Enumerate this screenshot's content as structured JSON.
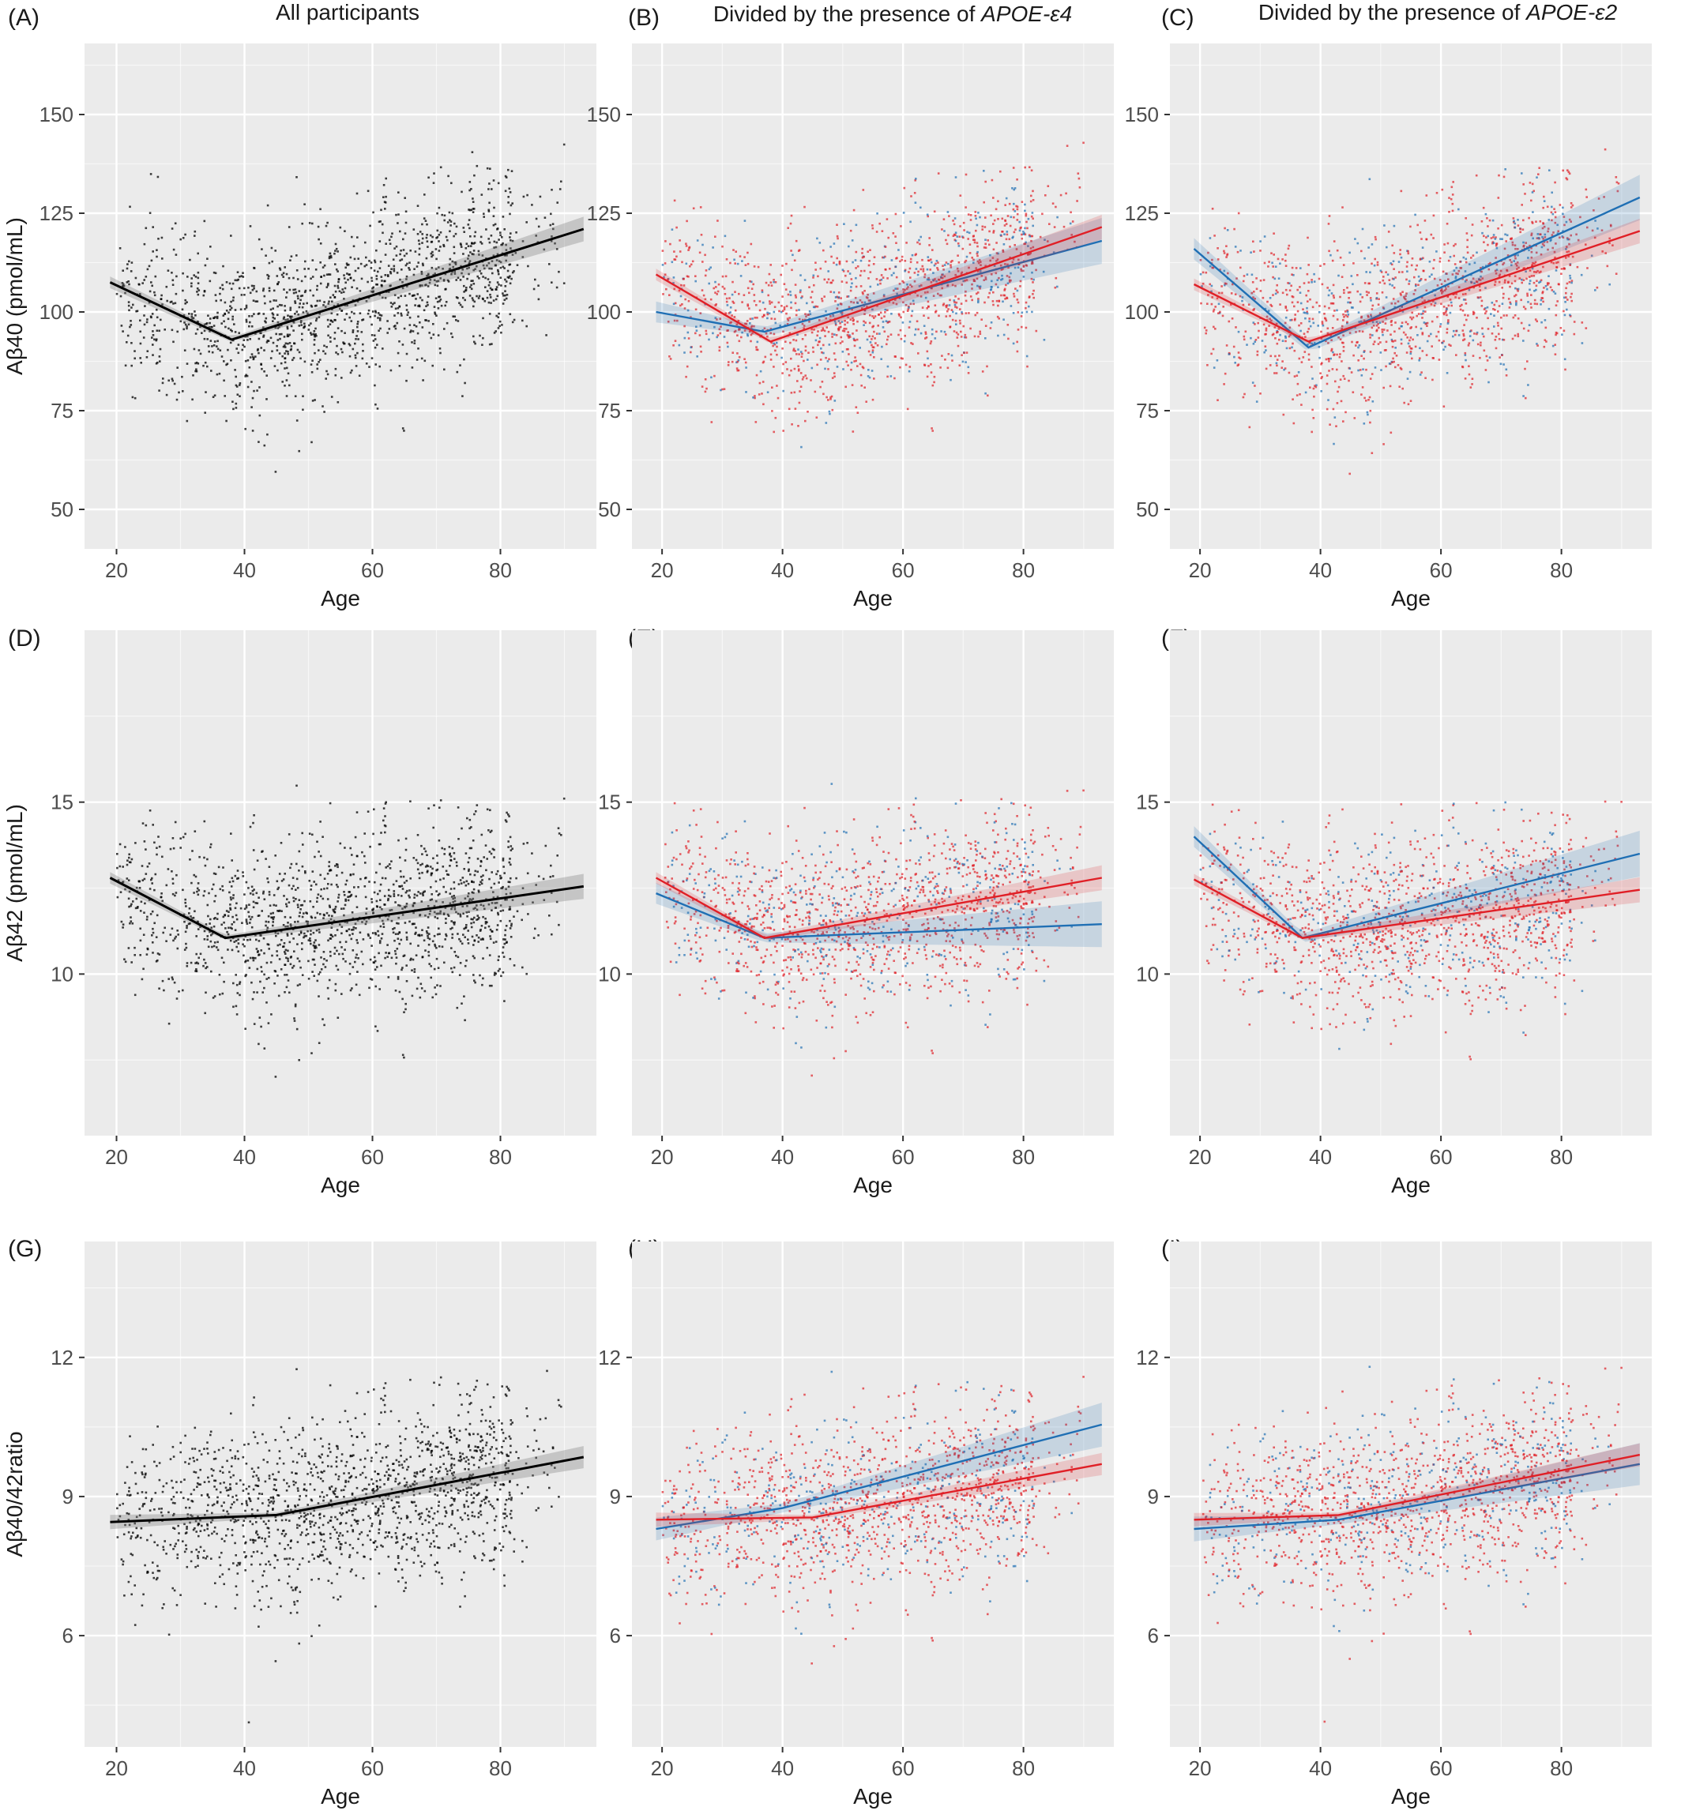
{
  "column_titles": [
    {
      "plain": "All participants",
      "italic": ""
    },
    {
      "plain": "Divided by the presence of ",
      "italic": "APOE-ε4"
    },
    {
      "plain": "Divided by the presence of ",
      "italic": "APOE-ε2"
    }
  ],
  "colors": {
    "all": "#000000",
    "carrier": "#1f6fb4",
    "noncarrier": "#e01f26",
    "panel_bg": "#ebebeb",
    "grid": "#ffffff"
  },
  "chart_data": [
    {
      "id": "A",
      "type": "scatter",
      "xlabel": "Age",
      "ylabel": "Aβ40 (pmol/mL)",
      "xlim": [
        15,
        95
      ],
      "ylim": [
        40,
        168
      ],
      "yticks": [
        50,
        75,
        100,
        125,
        150
      ],
      "xticks": [
        20,
        40,
        60,
        80
      ],
      "grid": true,
      "point_colors": [
        "#000000"
      ],
      "fit_lines": [
        {
          "color": "#000000",
          "x": [
            19,
            38,
            93
          ],
          "y": [
            107.5,
            93.0,
            121.0
          ]
        }
      ]
    },
    {
      "id": "B",
      "type": "scatter",
      "xlabel": "Age",
      "ylabel": "",
      "xlim": [
        15,
        95
      ],
      "ylim": [
        40,
        168
      ],
      "yticks": [
        50,
        75,
        100,
        125,
        150
      ],
      "xticks": [
        20,
        40,
        60,
        80
      ],
      "grid": true,
      "point_colors": [
        "#e01f26",
        "#e01f26",
        "#e01f26",
        "#1f6fb4"
      ],
      "fit_lines": [
        {
          "color": "#1f6fb4",
          "x": [
            19,
            37,
            93
          ],
          "y": [
            100.0,
            95.0,
            118.0
          ]
        },
        {
          "color": "#e01f26",
          "x": [
            19,
            38,
            93
          ],
          "y": [
            109.5,
            92.5,
            121.5
          ]
        }
      ]
    },
    {
      "id": "C",
      "type": "scatter",
      "xlabel": "Age",
      "ylabel": "",
      "xlim": [
        15,
        95
      ],
      "ylim": [
        40,
        168
      ],
      "yticks": [
        50,
        75,
        100,
        125,
        150
      ],
      "xticks": [
        20,
        40,
        60,
        80
      ],
      "grid": true,
      "point_colors": [
        "#e01f26",
        "#e01f26",
        "#e01f26",
        "#1f6fb4"
      ],
      "fit_lines": [
        {
          "color": "#1f6fb4",
          "x": [
            19,
            38,
            93
          ],
          "y": [
            116.0,
            91.0,
            129.0
          ]
        },
        {
          "color": "#e01f26",
          "x": [
            19,
            38,
            93
          ],
          "y": [
            107.0,
            92.5,
            120.5
          ]
        }
      ]
    },
    {
      "id": "D",
      "type": "scatter",
      "xlabel": "Age",
      "ylabel": "Aβ42 (pmol/mL)",
      "xlim": [
        15,
        95
      ],
      "ylim": [
        5.3,
        20.0
      ],
      "yticks": [
        10,
        15
      ],
      "xticks": [
        20,
        40,
        60,
        80
      ],
      "grid": true,
      "point_colors": [
        "#000000"
      ],
      "fit_lines": [
        {
          "color": "#000000",
          "x": [
            19,
            37,
            93
          ],
          "y": [
            12.8,
            11.05,
            12.55
          ]
        }
      ]
    },
    {
      "id": "E",
      "type": "scatter",
      "xlabel": "Age",
      "ylabel": "",
      "xlim": [
        15,
        95
      ],
      "ylim": [
        5.3,
        20.0
      ],
      "yticks": [
        10,
        15
      ],
      "xticks": [
        20,
        40,
        60,
        80
      ],
      "grid": true,
      "point_colors": [
        "#e01f26",
        "#e01f26",
        "#e01f26",
        "#1f6fb4"
      ],
      "fit_lines": [
        {
          "color": "#1f6fb4",
          "x": [
            19,
            37,
            93
          ],
          "y": [
            12.35,
            11.05,
            11.45
          ]
        },
        {
          "color": "#e01f26",
          "x": [
            19,
            37,
            93
          ],
          "y": [
            12.8,
            11.05,
            12.8
          ]
        }
      ]
    },
    {
      "id": "F",
      "type": "scatter",
      "xlabel": "Age",
      "ylabel": "",
      "xlim": [
        15,
        95
      ],
      "ylim": [
        5.3,
        20.0
      ],
      "yticks": [
        10,
        15
      ],
      "xticks": [
        20,
        40,
        60,
        80
      ],
      "grid": true,
      "point_colors": [
        "#e01f26",
        "#e01f26",
        "#e01f26",
        "#1f6fb4"
      ],
      "fit_lines": [
        {
          "color": "#1f6fb4",
          "x": [
            19,
            37,
            93
          ],
          "y": [
            14.0,
            11.05,
            13.5
          ]
        },
        {
          "color": "#e01f26",
          "x": [
            19,
            37,
            93
          ],
          "y": [
            12.75,
            11.05,
            12.45
          ]
        }
      ]
    },
    {
      "id": "G",
      "type": "scatter",
      "xlabel": "Age",
      "ylabel": "Aβ40/42ratio",
      "xlim": [
        15,
        95
      ],
      "ylim": [
        3.6,
        14.5
      ],
      "yticks": [
        6,
        9,
        12
      ],
      "xticks": [
        20,
        40,
        60,
        80
      ],
      "grid": true,
      "point_colors": [
        "#000000"
      ],
      "fit_lines": [
        {
          "color": "#000000",
          "x": [
            19,
            45,
            93
          ],
          "y": [
            8.45,
            8.6,
            9.85
          ]
        }
      ]
    },
    {
      "id": "H",
      "type": "scatter",
      "xlabel": "Age",
      "ylabel": "",
      "xlim": [
        15,
        95
      ],
      "ylim": [
        3.6,
        14.5
      ],
      "yticks": [
        6,
        9,
        12
      ],
      "xticks": [
        20,
        40,
        60,
        80
      ],
      "grid": true,
      "point_colors": [
        "#e01f26",
        "#e01f26",
        "#e01f26",
        "#1f6fb4"
      ],
      "fit_lines": [
        {
          "color": "#1f6fb4",
          "x": [
            19,
            40,
            93
          ],
          "y": [
            8.3,
            8.75,
            10.55
          ]
        },
        {
          "color": "#e01f26",
          "x": [
            19,
            45,
            93
          ],
          "y": [
            8.5,
            8.55,
            9.7
          ]
        }
      ]
    },
    {
      "id": "I",
      "type": "scatter",
      "xlabel": "Age",
      "ylabel": "",
      "xlim": [
        15,
        95
      ],
      "ylim": [
        3.6,
        14.5
      ],
      "yticks": [
        6,
        9,
        12
      ],
      "xticks": [
        20,
        40,
        60,
        80
      ],
      "grid": true,
      "point_colors": [
        "#e01f26",
        "#e01f26",
        "#e01f26",
        "#1f6fb4"
      ],
      "fit_lines": [
        {
          "color": "#1f6fb4",
          "x": [
            19,
            43,
            93
          ],
          "y": [
            8.3,
            8.5,
            9.7
          ]
        },
        {
          "color": "#e01f26",
          "x": [
            19,
            43,
            93
          ],
          "y": [
            8.5,
            8.6,
            9.9
          ]
        }
      ]
    }
  ],
  "panel_letters": [
    "(A)",
    "(B)",
    "(C)",
    "(D)",
    "(E)",
    "(F)",
    "(G)",
    "(H)",
    "(I)"
  ]
}
